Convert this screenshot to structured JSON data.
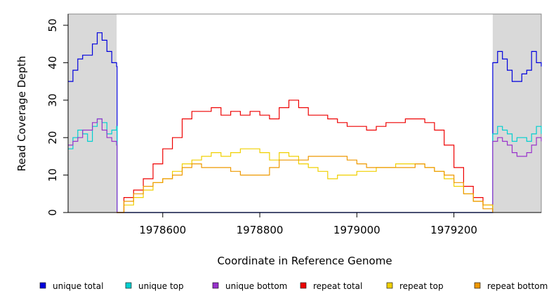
{
  "chart_data": {
    "type": "line",
    "xlabel": "Coordinate in Reference Genome",
    "ylabel": "Read Coverage Depth",
    "xlim": [
      1978405,
      1979380
    ],
    "ylim": [
      0,
      53
    ],
    "x_ticks": [
      1978600,
      1978800,
      1979000,
      1979200
    ],
    "y_ticks": [
      0,
      10,
      20,
      30,
      40,
      50
    ],
    "shaded_regions": [
      {
        "x0": 1978405,
        "x1": 1978505,
        "color": "#d9d9d9"
      },
      {
        "x0": 1979280,
        "x1": 1979380,
        "color": "#d9d9d9"
      }
    ],
    "series": [
      {
        "name": "unique total",
        "color": "#0000dd",
        "x": [
          1978405,
          1978415,
          1978425,
          1978435,
          1978445,
          1978455,
          1978465,
          1978475,
          1978485,
          1978495,
          1978505,
          1978506,
          1979279,
          1979280,
          1979290,
          1979300,
          1979310,
          1979320,
          1979330,
          1979340,
          1979350,
          1979360,
          1979370,
          1979380
        ],
        "y": [
          35,
          38,
          41,
          42,
          42,
          45,
          48,
          46,
          43,
          40,
          39,
          0,
          0,
          40,
          43,
          41,
          38,
          35,
          35,
          37,
          38,
          43,
          40,
          39
        ]
      },
      {
        "name": "unique top",
        "color": "#00d0d0",
        "x": [
          1978405,
          1978415,
          1978425,
          1978435,
          1978445,
          1978455,
          1978465,
          1978475,
          1978485,
          1978495,
          1978505,
          1978506,
          1979279,
          1979280,
          1979290,
          1979300,
          1979310,
          1979320,
          1979330,
          1979340,
          1979350,
          1979360,
          1979370,
          1979380
        ],
        "y": [
          17,
          20,
          22,
          21,
          19,
          23,
          25,
          24,
          21,
          22,
          23,
          0,
          0,
          21,
          23,
          22,
          21,
          19,
          20,
          20,
          19,
          21,
          23,
          21
        ]
      },
      {
        "name": "unique bottom",
        "color": "#9933cc",
        "x": [
          1978405,
          1978415,
          1978425,
          1978435,
          1978445,
          1978455,
          1978465,
          1978475,
          1978485,
          1978495,
          1978505,
          1978506,
          1979279,
          1979280,
          1979290,
          1979300,
          1979310,
          1979320,
          1979330,
          1979340,
          1979350,
          1979360,
          1979370,
          1979380
        ],
        "y": [
          18,
          19,
          20,
          22,
          22,
          24,
          25,
          22,
          20,
          19,
          18,
          0,
          0,
          19,
          20,
          19,
          18,
          16,
          15,
          15,
          16,
          18,
          20,
          19
        ]
      },
      {
        "name": "repeat total",
        "color": "#ee0000",
        "x": [
          1978505,
          1978520,
          1978540,
          1978560,
          1978580,
          1978600,
          1978620,
          1978640,
          1978660,
          1978680,
          1978700,
          1978720,
          1978740,
          1978760,
          1978780,
          1978800,
          1978820,
          1978840,
          1978860,
          1978880,
          1978900,
          1978920,
          1978940,
          1978960,
          1978980,
          1979000,
          1979020,
          1979040,
          1979060,
          1979080,
          1979100,
          1979120,
          1979140,
          1979160,
          1979180,
          1979200,
          1979220,
          1979240,
          1979260,
          1979280
        ],
        "y": [
          0,
          4,
          6,
          9,
          13,
          17,
          20,
          25,
          27,
          27,
          28,
          26,
          27,
          26,
          27,
          26,
          25,
          28,
          30,
          28,
          26,
          26,
          25,
          24,
          23,
          23,
          22,
          23,
          24,
          24,
          25,
          25,
          24,
          22,
          18,
          12,
          7,
          4,
          2,
          0
        ]
      },
      {
        "name": "repeat top",
        "color": "#f0d000",
        "x": [
          1978505,
          1978520,
          1978540,
          1978560,
          1978580,
          1978600,
          1978620,
          1978640,
          1978660,
          1978680,
          1978700,
          1978720,
          1978740,
          1978760,
          1978780,
          1978800,
          1978820,
          1978840,
          1978860,
          1978880,
          1978900,
          1978920,
          1978940,
          1978960,
          1978980,
          1979000,
          1979020,
          1979040,
          1979060,
          1979080,
          1979100,
          1979120,
          1979140,
          1979160,
          1979180,
          1979200,
          1979220,
          1979240,
          1979260,
          1979280
        ],
        "y": [
          0,
          2,
          4,
          6,
          8,
          9,
          11,
          13,
          14,
          15,
          16,
          15,
          16,
          17,
          17,
          16,
          14,
          16,
          15,
          13,
          12,
          11,
          9,
          10,
          10,
          11,
          11,
          12,
          12,
          13,
          13,
          13,
          12,
          11,
          9,
          7,
          5,
          3,
          2,
          0
        ]
      },
      {
        "name": "repeat bottom",
        "color": "#ee9900",
        "x": [
          1978505,
          1978520,
          1978540,
          1978560,
          1978580,
          1978600,
          1978620,
          1978640,
          1978660,
          1978680,
          1978700,
          1978720,
          1978740,
          1978760,
          1978780,
          1978800,
          1978820,
          1978840,
          1978860,
          1978880,
          1978900,
          1978920,
          1978940,
          1978960,
          1978980,
          1979000,
          1979020,
          1979040,
          1979060,
          1979080,
          1979100,
          1979120,
          1979140,
          1979160,
          1979180,
          1979200,
          1979220,
          1979240,
          1979260,
          1979280
        ],
        "y": [
          0,
          3,
          5,
          7,
          8,
          9,
          10,
          12,
          13,
          12,
          12,
          12,
          11,
          10,
          10,
          10,
          12,
          14,
          14,
          14,
          15,
          15,
          15,
          15,
          14,
          13,
          12,
          12,
          12,
          12,
          12,
          13,
          12,
          11,
          10,
          8,
          5,
          3,
          1,
          0
        ]
      }
    ]
  }
}
